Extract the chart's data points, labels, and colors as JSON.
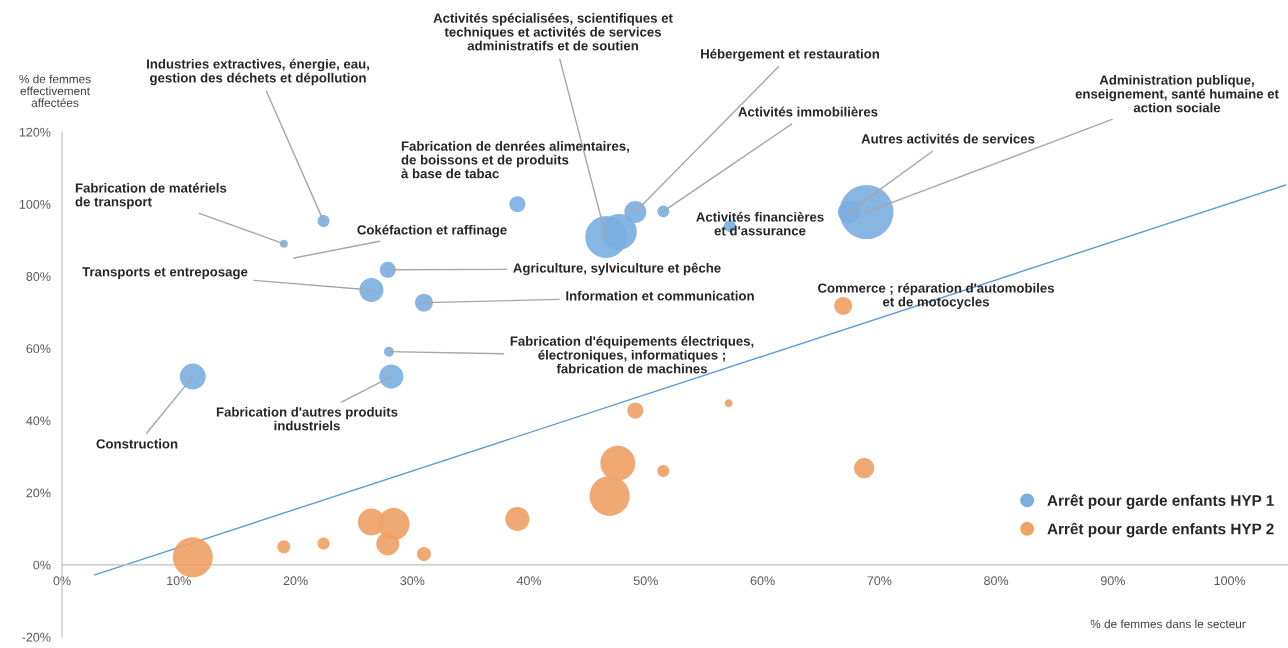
{
  "chart_data": {
    "type": "bubble",
    "xlabel": "% de femmes dans le secteur",
    "ylabel": "% de femmes\neffectivement\naffectées",
    "xlim": [
      0,
      105
    ],
    "ylim": [
      -20,
      120
    ],
    "xticks": [
      {
        "value": 0,
        "label": "0%"
      },
      {
        "value": 10,
        "label": "10%"
      },
      {
        "value": 20,
        "label": "20%"
      },
      {
        "value": 30,
        "label": "30%"
      },
      {
        "value": 40,
        "label": "40%"
      },
      {
        "value": 50,
        "label": "50%"
      },
      {
        "value": 60,
        "label": "60%"
      },
      {
        "value": 70,
        "label": "70%"
      },
      {
        "value": 80,
        "label": "80%"
      },
      {
        "value": 90,
        "label": "90%"
      },
      {
        "value": 100,
        "label": "100%"
      }
    ],
    "yticks": [
      {
        "value": -20,
        "label": "-20%"
      },
      {
        "value": 0,
        "label": "0%"
      },
      {
        "value": 20,
        "label": "20%"
      },
      {
        "value": 40,
        "label": "40%"
      },
      {
        "value": 60,
        "label": "60%"
      },
      {
        "value": 80,
        "label": "80%"
      },
      {
        "value": 100,
        "label": "100%"
      },
      {
        "value": 120,
        "label": "120%"
      }
    ],
    "grid": false,
    "legend": "bottom right",
    "series": [
      {
        "name": "Arrêt pour garde enfants HYP 1",
        "color": "#7aaee0",
        "x": [
          22.4,
          19.0,
          39.0,
          27.9,
          26.5,
          31.0,
          28.0,
          28.2,
          11.2,
          49.1,
          51.5,
          46.6,
          47.7,
          67.4,
          68.9,
          57.2
        ],
        "values": [
          95.3,
          89,
          100,
          81.8,
          76.2,
          72.7,
          59.1,
          52.2,
          52.2,
          97.8,
          98,
          90.9,
          92.3,
          97.8,
          97.8,
          93.9
        ],
        "sizes": [
          0.049,
          0.022,
          0.088,
          0.088,
          0.2,
          0.11,
          0.034,
          0.2,
          0.23,
          0.166,
          0.049,
          0.6,
          0.44,
          0.166,
          1,
          0.049
        ]
      },
      {
        "name": "Arrêt pour garde enfants HYP 2",
        "color": "#f0a064",
        "x": [
          11.2,
          19.0,
          22.4,
          26.5,
          28.4,
          27.9,
          31.0,
          39.0,
          46.9,
          47.6,
          49.1,
          51.5,
          57.1,
          66.9,
          68.7
        ],
        "values": [
          2.1,
          5.0,
          5.9,
          11.9,
          11.3,
          5.8,
          3.0,
          12.7,
          19.1,
          28.2,
          42.8,
          26,
          44.8,
          71.8,
          26.8
        ],
        "sizes": [
          0.55,
          0.058,
          0.05,
          0.25,
          0.35,
          0.18,
          0.067,
          0.2,
          0.55,
          0.42,
          0.088,
          0.049,
          0.022,
          0.11,
          0.14
        ]
      },
      {
        "type": "line",
        "color": "#5b9bd5",
        "x": [
          2.8,
          104.8
        ],
        "values": [
          -2.8,
          105.3
        ]
      }
    ],
    "annotations": [
      {
        "text": "Industries extractives, énergie, eau,\ngestion des déchets et dépollution",
        "x": 22.4,
        "y": 95.3
      },
      {
        "text": "Fabrication de matériels\nde transport",
        "x": 19.0,
        "y": 89
      },
      "Cokéfaction et raffinage",
      {
        "text": "Transports et entreposage",
        "x": 26.5,
        "y": 76.2
      },
      {
        "text": "Agriculture, sylviculture et pêche",
        "x": 27.9,
        "y": 81.8
      },
      {
        "text": "Information et communication",
        "x": 31.0,
        "y": 72.7
      },
      {
        "text": "Fabrication d'équipements électriques,\nélectroniques, informatiques ;\nfabrication de machines",
        "x": 28.0,
        "y": 59.1
      },
      {
        "text": "Fabrication d'autres produits\nindustriels",
        "x": 28.2,
        "y": 52.2
      },
      {
        "text": "Construction",
        "x": 11.2,
        "y": 52.2
      },
      {
        "text": "Fabrication de denrées alimentaires,\nde boissons et de produits\nà base de tabac",
        "x": 39.0,
        "y": 100
      },
      {
        "text": "Activités spécialisées, scientifiques et\ntechniques et activités de services\nadministratifs et de soutien",
        "x": 46.6,
        "y": 90.9
      },
      {
        "text": "Hébergement et restauration",
        "x": 49.1,
        "y": 97.8
      },
      {
        "text": "Activités immobilières",
        "x": 51.5,
        "y": 98
      },
      {
        "text": "Activités financières\net d'assurance",
        "x": 57.2,
        "y": 93.9
      },
      {
        "text": "Autres activités de services",
        "x": 67.4,
        "y": 97.8
      },
      {
        "text": "Administration publique,\nenseignement, santé humaine et\naction sociale",
        "x": 68.9,
        "y": 97.8
      },
      {
        "text": "Commerce ; réparation d'automobiles\net de motocycles",
        "x": 66.9,
        "y": 71.8
      }
    ]
  }
}
